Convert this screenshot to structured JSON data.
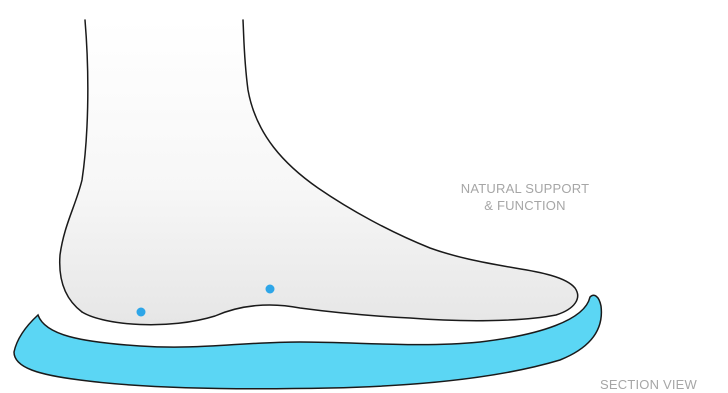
{
  "labels": {
    "support_line1": "NATURAL SUPPORT",
    "support_line2": "& FUNCTION",
    "section_view": "SECTION VIEW"
  },
  "colors": {
    "insole_fill": "#5bd6f4",
    "insole_stroke": "#1a1a1a",
    "foot_outline": "#1a1a1a",
    "foot_shade": "#e9e9e9",
    "pressure_point": "#2ea6e8",
    "label_text": "#a6a6a6"
  },
  "icons": {
    "foot": "foot-illustration",
    "insole": "insole-section",
    "pressure_points": [
      "heel-point-icon",
      "arch-point-icon"
    ]
  }
}
